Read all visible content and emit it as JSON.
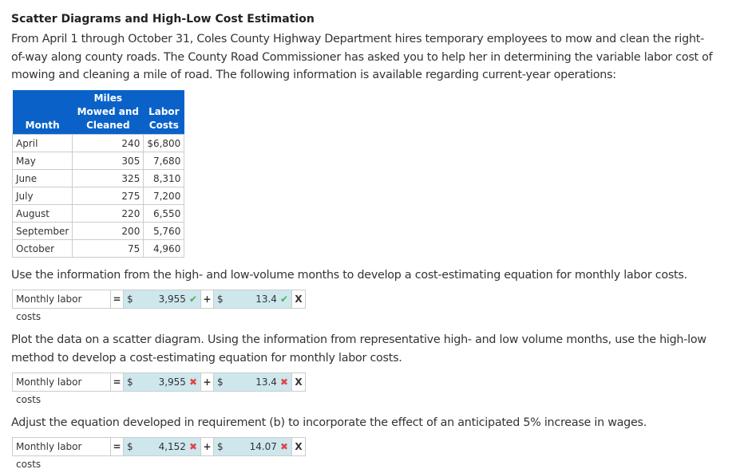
{
  "title": "Scatter Diagrams and High-Low Cost Estimation",
  "intro": "From April 1 through October 31, Coles County Highway Department hires temporary employees to mow and clean the right-of-way along county roads. The County Road Commissioner has asked you to help her in determining the variable labor cost of mowing and cleaning a mile of road. The following information is available regarding current-year operations:",
  "table": {
    "headers": [
      "Month",
      "Miles Mowed and Cleaned",
      "Labor Costs"
    ],
    "rows": [
      [
        "April",
        "240",
        "$6,800"
      ],
      [
        "May",
        "305",
        "7,680"
      ],
      [
        "June",
        "325",
        "8,310"
      ],
      [
        "July",
        "275",
        "7,200"
      ],
      [
        "August",
        "220",
        "6,550"
      ],
      [
        "September",
        "200",
        "5,760"
      ],
      [
        "October",
        "75",
        "4,960"
      ]
    ]
  },
  "questions": [
    {
      "text": "Use the information from the high- and low-volume months to develop a cost-estimating equation for monthly labor costs.",
      "label": "Monthly labor costs",
      "eq": "=",
      "cur": "$",
      "fixed": "3,955",
      "fixed_status": "correct",
      "plus": "+",
      "variable": "13.4",
      "variable_status": "correct",
      "x": "X"
    },
    {
      "text": "Plot the data on a scatter diagram. Using the information from representative high- and low volume months, use the high-low method to develop a cost-estimating equation for monthly labor costs.",
      "label": "Monthly labor costs",
      "eq": "=",
      "cur": "$",
      "fixed": "3,955",
      "fixed_status": "incorrect",
      "plus": "+",
      "variable": "13.4",
      "variable_status": "incorrect",
      "x": "X"
    },
    {
      "text": "Adjust the equation developed in requirement (b) to incorporate the effect of an anticipated 5% increase in wages.",
      "label": "Monthly labor costs",
      "eq": "=",
      "cur": "$",
      "fixed": "4,152",
      "fixed_status": "incorrect",
      "plus": "+",
      "variable": "14.07",
      "variable_status": "incorrect",
      "x": "X"
    }
  ],
  "colors": {
    "header": "#0a62c9",
    "input_bg": "#cde7ed",
    "correct": "#4caf50",
    "incorrect": "#e04545"
  }
}
